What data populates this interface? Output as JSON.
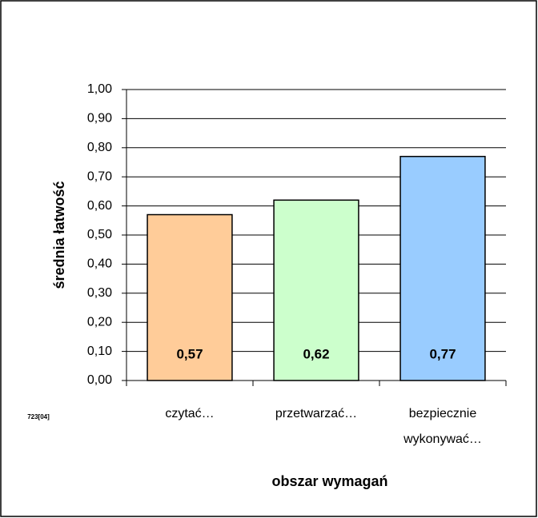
{
  "chart_data": {
    "type": "bar",
    "ylabel": "średnia łatwość",
    "xlabel": "obszar wymagań",
    "annotation": "723[04]",
    "categories": [
      "czytać…",
      "przetwarzać…",
      "bezpiecznie wykonywać…"
    ],
    "values": [
      0.57,
      0.62,
      0.77
    ],
    "value_labels": [
      "0,57",
      "0,62",
      "0,77"
    ],
    "colors": [
      "#ffcc99",
      "#ccffcc",
      "#99ccff"
    ],
    "ylim": [
      0,
      1
    ],
    "yticks": [
      {
        "value": 0,
        "label": "0,00"
      },
      {
        "value": 0.1,
        "label": "0,10"
      },
      {
        "value": 0.2,
        "label": "0,20"
      },
      {
        "value": 0.3,
        "label": "0,30"
      },
      {
        "value": 0.4,
        "label": "0,40"
      },
      {
        "value": 0.5,
        "label": "0,50"
      },
      {
        "value": 0.6,
        "label": "0,60"
      },
      {
        "value": 0.7,
        "label": "0,70"
      },
      {
        "value": 0.8,
        "label": "0,80"
      },
      {
        "value": 0.9,
        "label": "0,90"
      },
      {
        "value": 1,
        "label": "1,00"
      }
    ],
    "grid": true
  }
}
